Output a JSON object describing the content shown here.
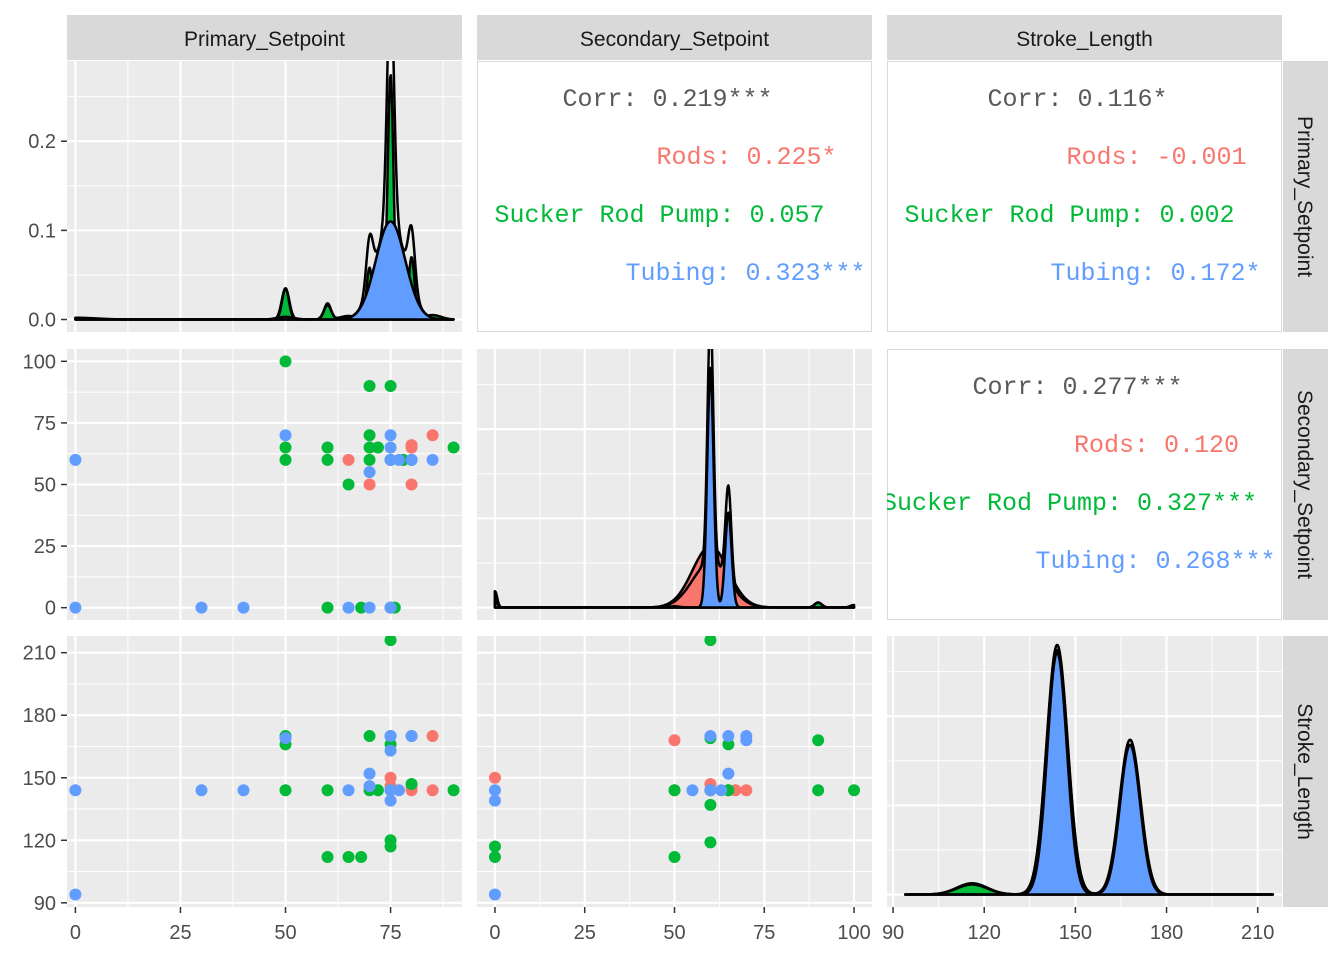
{
  "chart_data": {
    "type": "scatter",
    "colors": {
      "Rods": "#F8766D",
      "Sucker Rod Pump": "#00BA38",
      "Tubing": "#619CFF",
      "panel_bg": "#EBEBEB",
      "strip_bg": "#D9D9D9",
      "grid": "#FFFFFF",
      "overall": "#595959"
    },
    "variables": [
      "Primary_Setpoint",
      "Secondary_Setpoint",
      "Stroke_Length"
    ],
    "groups": [
      "Rods",
      "Sucker Rod Pump",
      "Tubing"
    ],
    "axes": {
      "Primary_Setpoint": {
        "range": [
          -2,
          92
        ],
        "ticks": [
          0,
          25,
          50,
          75
        ],
        "tick_labels": [
          "0",
          "25",
          "50",
          "75"
        ]
      },
      "Secondary_Setpoint": {
        "range": [
          -5,
          105
        ],
        "ticks": [
          0,
          25,
          50,
          75,
          100
        ],
        "tick_labels": [
          "0",
          "25",
          "50",
          "75",
          "100"
        ]
      },
      "Stroke_Length": {
        "range": [
          88,
          218
        ],
        "ticks": [
          90,
          120,
          150,
          180,
          210
        ],
        "tick_labels": [
          "90",
          "120",
          "150",
          "180",
          "210"
        ]
      }
    },
    "density_y_axis": {
      "range": [
        -0.014,
        0.29
      ],
      "ticks": [
        0.0,
        0.1,
        0.2
      ],
      "tick_labels": [
        "0.0",
        "0.1",
        "0.2"
      ]
    },
    "correlations": [
      {
        "row": 0,
        "col": 1,
        "overall": "Corr: 0.219***",
        "Rods": "Rods: 0.225*",
        "Sucker Rod Pump": "Sucker Rod Pump: 0.057",
        "Tubing": "Tubing: 0.323***"
      },
      {
        "row": 0,
        "col": 2,
        "overall": "Corr: 0.116*",
        "Rods": "Rods: -0.001",
        "Sucker Rod Pump": "Sucker Rod Pump: 0.002",
        "Tubing": "Tubing: 0.172*"
      },
      {
        "row": 1,
        "col": 2,
        "overall": "Corr: 0.277***",
        "Rods": "Rods: 0.120",
        "Sucker Rod Pump": "Sucker Rod Pump: 0.327***",
        "Tubing": "Tubing: 0.268***"
      }
    ],
    "densities": {
      "Primary_Setpoint": {
        "Rods": [
          [
            76,
            0.03,
            4
          ]
        ],
        "Sucker Rod Pump": [
          [
            0,
            0.002,
            5
          ],
          [
            50,
            0.035,
            0.8
          ],
          [
            60,
            0.018,
            0.8
          ],
          [
            70,
            0.058,
            0.7
          ],
          [
            75,
            0.275,
            0.7
          ],
          [
            80,
            0.07,
            0.7
          ],
          [
            65,
            0.004,
            2
          ],
          [
            85,
            0.005,
            2
          ]
        ],
        "Tubing": [
          [
            75,
            0.11,
            3.5
          ],
          [
            50,
            0.003,
            2
          ],
          [
            0,
            0.001,
            3
          ]
        ],
        "Overall": [
          [
            75,
            0.27,
            0.8
          ],
          [
            75,
            0.11,
            3.5
          ],
          [
            50,
            0.035,
            0.9
          ],
          [
            60,
            0.016,
            0.9
          ],
          [
            70,
            0.055,
            0.8
          ],
          [
            80,
            0.065,
            0.8
          ],
          [
            0,
            0.001,
            5
          ]
        ]
      },
      "Secondary_Setpoint": {
        "Rods": [
          [
            60,
            0.245,
            5
          ]
        ],
        "Sucker Rod Pump": [
          [
            0,
            0.065,
            0.6
          ],
          [
            50,
            0.005,
            1.5
          ],
          [
            60,
            0.96,
            0.8
          ],
          [
            65,
            0.35,
            0.8
          ],
          [
            90,
            0.02,
            1
          ],
          [
            100,
            0.01,
            1
          ]
        ],
        "Tubing": [
          [
            0,
            0.03,
            0.6
          ],
          [
            60,
            0.94,
            0.9
          ],
          [
            65,
            0.38,
            0.9
          ]
        ],
        "Overall": [
          [
            0,
            0.065,
            0.6
          ],
          [
            60,
            1.0,
            0.8
          ],
          [
            65,
            0.38,
            0.8
          ],
          [
            60,
            0.18,
            5
          ],
          [
            90,
            0.02,
            1
          ],
          [
            100,
            0.01,
            1
          ]
        ]
      },
      "Stroke_Length": {
        "Rods": [
          [
            144,
            0.97,
            3.4
          ],
          [
            168,
            0.59,
            3.4
          ]
        ],
        "Sucker Rod Pump": [
          [
            116,
            0.045,
            5
          ],
          [
            144,
            0.98,
            3.5
          ],
          [
            168,
            0.57,
            3.5
          ]
        ],
        "Tubing": [
          [
            144,
            0.97,
            3.2
          ],
          [
            168,
            0.6,
            3.3
          ]
        ],
        "Overall": [
          [
            116,
            0.04,
            5
          ],
          [
            144,
            1.0,
            3.5
          ],
          [
            168,
            0.62,
            3.5
          ]
        ]
      }
    },
    "points": {
      "Rods": [
        [
          65,
          60
        ],
        [
          70,
          50
        ],
        [
          75,
          60
        ],
        [
          78,
          60
        ],
        [
          80,
          65
        ],
        [
          80,
          66
        ],
        [
          80,
          50
        ],
        [
          85,
          70
        ]
      ],
      "Sucker Rod Pump": [
        [
          50,
          100
        ],
        [
          50,
          65
        ],
        [
          50,
          60
        ],
        [
          60,
          65
        ],
        [
          60,
          60
        ],
        [
          60,
          0
        ],
        [
          65,
          50
        ],
        [
          68,
          0
        ],
        [
          70,
          90
        ],
        [
          70,
          70
        ],
        [
          70,
          65
        ],
        [
          70,
          60
        ],
        [
          72,
          65
        ],
        [
          75,
          90
        ],
        [
          75,
          60
        ],
        [
          75,
          0
        ],
        [
          76,
          0
        ],
        [
          78,
          60
        ],
        [
          80,
          60
        ],
        [
          90,
          65
        ]
      ],
      "Tubing": [
        [
          0,
          60
        ],
        [
          0,
          0
        ],
        [
          30,
          0
        ],
        [
          40,
          0
        ],
        [
          50,
          70
        ],
        [
          65,
          0
        ],
        [
          70,
          0
        ],
        [
          70,
          55
        ],
        [
          75,
          70
        ],
        [
          75,
          65
        ],
        [
          75,
          60
        ],
        [
          75,
          0
        ],
        [
          77,
          60
        ],
        [
          80,
          60
        ],
        [
          85,
          60
        ]
      ]
    },
    "points_primary_stroke": {
      "Rods": [
        [
          75,
          150
        ],
        [
          75,
          146
        ],
        [
          80,
          146
        ],
        [
          80,
          144
        ],
        [
          85,
          170
        ],
        [
          85,
          144
        ]
      ],
      "Sucker Rod Pump": [
        [
          50,
          170
        ],
        [
          50,
          166
        ],
        [
          50,
          144
        ],
        [
          60,
          144
        ],
        [
          60,
          112
        ],
        [
          65,
          112
        ],
        [
          68,
          112
        ],
        [
          70,
          170
        ],
        [
          70,
          144
        ],
        [
          72,
          144
        ],
        [
          75,
          216
        ],
        [
          75,
          170
        ],
        [
          75,
          166
        ],
        [
          75,
          120
        ],
        [
          75,
          117
        ],
        [
          75,
          144
        ],
        [
          80,
          147
        ],
        [
          80,
          170
        ],
        [
          90,
          144
        ]
      ],
      "Tubing": [
        [
          0,
          144
        ],
        [
          0,
          94
        ],
        [
          30,
          144
        ],
        [
          40,
          144
        ],
        [
          50,
          169
        ],
        [
          65,
          144
        ],
        [
          70,
          152
        ],
        [
          70,
          146
        ],
        [
          75,
          170
        ],
        [
          75,
          163
        ],
        [
          75,
          144
        ],
        [
          75,
          139
        ],
        [
          77,
          144
        ],
        [
          80,
          170
        ]
      ]
    },
    "points_secondary_stroke": {
      "Rods": [
        [
          0,
          150
        ],
        [
          50,
          168
        ],
        [
          50,
          144
        ],
        [
          60,
          147
        ],
        [
          60,
          144
        ],
        [
          65,
          144
        ],
        [
          67,
          144
        ],
        [
          70,
          144
        ]
      ],
      "Sucker Rod Pump": [
        [
          0,
          117
        ],
        [
          0,
          112
        ],
        [
          50,
          112
        ],
        [
          50,
          144
        ],
        [
          60,
          216
        ],
        [
          60,
          169
        ],
        [
          60,
          144
        ],
        [
          60,
          137
        ],
        [
          60,
          119
        ],
        [
          65,
          166
        ],
        [
          65,
          144
        ],
        [
          90,
          168
        ],
        [
          90,
          144
        ],
        [
          100,
          144
        ]
      ],
      "Tubing": [
        [
          0,
          144
        ],
        [
          0,
          139
        ],
        [
          0,
          94
        ],
        [
          55,
          144
        ],
        [
          60,
          170
        ],
        [
          60,
          144
        ],
        [
          63,
          144
        ],
        [
          65,
          170
        ],
        [
          65,
          152
        ],
        [
          70,
          170
        ],
        [
          70,
          168
        ]
      ]
    }
  }
}
